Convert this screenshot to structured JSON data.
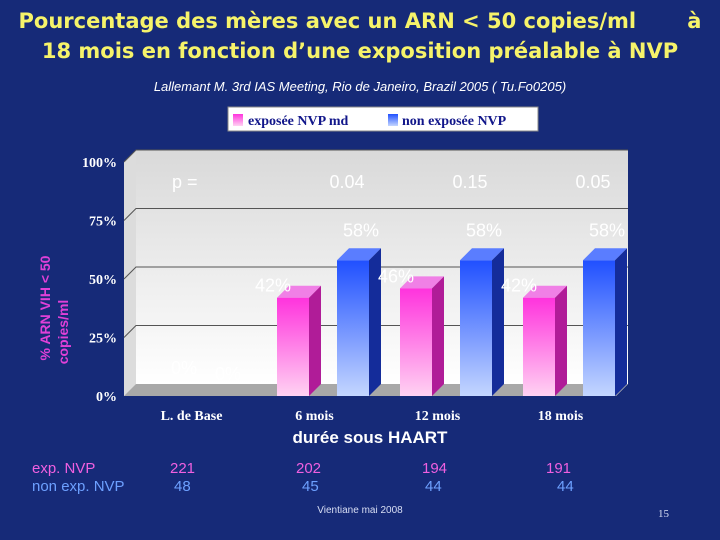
{
  "title_line1": "Pourcentage des mères avec un ARN < 50 copies/ml       à",
  "title_line2": "18 mois en fonction d’une exposition préalable à NVP",
  "subtitle": "Lallemant M. 3rd IAS Meeting, Rio de Janeiro, Brazil 2005 ( Tu.Fo0205)",
  "chart_data": {
    "type": "bar",
    "categories": [
      "L. de Base",
      "6 mois",
      "12 mois",
      "18 mois"
    ],
    "series": [
      {
        "name": "exposée NVP md",
        "values": [
          0,
          42,
          46,
          42
        ],
        "labels": [
          "0%",
          "42%",
          "46%",
          "42%"
        ],
        "color": "#ff33dd"
      },
      {
        "name": "non exposée NVP",
        "values": [
          0,
          58,
          58,
          58
        ],
        "labels": [
          "0%",
          "58%",
          "58%",
          "58%"
        ],
        "color": "#2255ff"
      }
    ],
    "p_label": "p =",
    "p_values": [
      "",
      "0.04",
      "0.15",
      "0.05"
    ],
    "xlabel": "durée sous HAART",
    "ylabel_line1": "% ARN VIH < 50",
    "ylabel_line2": "copies/ml",
    "ylim": [
      0,
      100
    ],
    "yticks": [
      "0%",
      "25%",
      "50%",
      "75%",
      "100%"
    ],
    "ytick_values": [
      0,
      25,
      50,
      75,
      100
    ],
    "legend": "top"
  },
  "counts": {
    "exp_label": "exp. NVP",
    "nonexp_label": "non exp. NVP",
    "exp": [
      "221",
      "202",
      "194",
      "191"
    ],
    "nonexp": [
      "48",
      "45",
      "44",
      "44"
    ]
  },
  "footer": "Vientiane mai 2008",
  "page_number": "15"
}
